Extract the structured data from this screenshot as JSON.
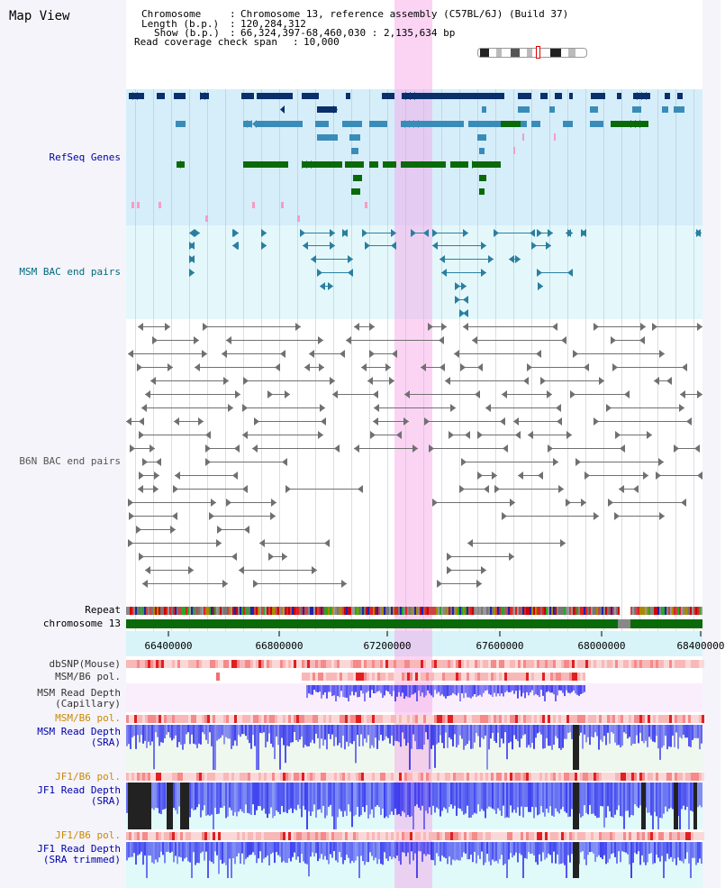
{
  "view_title": "Map View",
  "header": {
    "chromosome_label": "Chromosome",
    "chromosome_value": "Chromosome 13, reference assembly (C57BL/6J) (Build 37)",
    "length_label": "Length (b.p.)",
    "length_value": "120,284,312",
    "show_label": "Show (b.p.)",
    "show_value": "66,324,397-68,460,030 : 2,135,634 bp",
    "coverage_label": "Read coverage check span",
    "coverage_value": "10,000"
  },
  "tracks": {
    "refseq": "RefSeq Genes",
    "msm_bac": "MSM BAC end pairs",
    "b6n_bac": "B6N BAC end pairs",
    "repeat": "Repeat",
    "chromosome": "chromosome 13",
    "dbsnp": "dbSNP(Mouse)",
    "msm_b6_pol_1": "MSM/B6 pol.",
    "msm_depth_cap_1": "MSM Read Depth",
    "msm_depth_cap_2": "(Capillary)",
    "msm_b6_pol_2": "MSM/B6 pol.",
    "msm_depth_sra_1": "MSM Read Depth",
    "msm_depth_sra_2": "(SRA)",
    "jf1_b6_pol_1": "JF1/B6 pol.",
    "jf1_depth_sra_1": "JF1 Read Depth",
    "jf1_depth_sra_2": "(SRA)",
    "jf1_b6_pol_2": "JF1/B6 pol.",
    "jf1_depth_trim_1": "JF1 Read Depth",
    "jf1_depth_trim_2": "(SRA trimmed)"
  },
  "axis": {
    "ticks": [
      "66400000",
      "66800000",
      "67200000",
      "67600000",
      "68000000",
      "68400000"
    ]
  },
  "colors": {
    "refseq_bg": "#d6eefa",
    "msm_bg": "#e4f8fb",
    "highlight": "#f7c8ef",
    "refseq_dark": "#0a2f6b",
    "refseq_mid": "#3a8cb8",
    "refseq_green": "#0a6a0a",
    "msm_feature": "#2a7fa0",
    "b6n_feature": "#707070",
    "chromosome_bar": "#0a6a0a",
    "depth_blue": "#2020ee",
    "label_blue": "#0000aa",
    "label_teal": "#006a7a",
    "label_orange": "#cc8800"
  }
}
